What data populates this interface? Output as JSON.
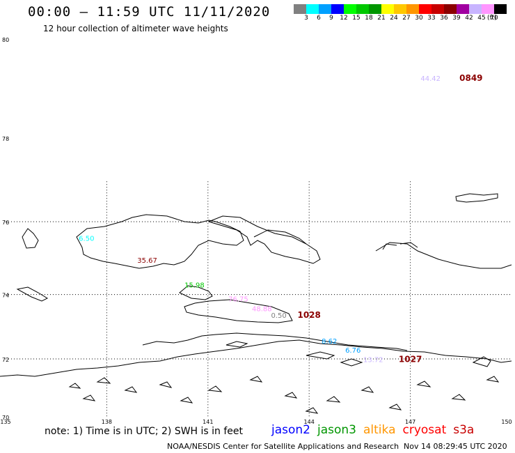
{
  "header": {
    "title": "00:00 – 11:59 UTC 11/11/2020",
    "subtitle": "12 hour collection of altimeter wave heights"
  },
  "legend": {
    "unit": "(ft)",
    "bins": [
      {
        "label": "3",
        "color": "#808080"
      },
      {
        "label": "6",
        "color": "#00ffff"
      },
      {
        "label": "9",
        "color": "#00a0ff"
      },
      {
        "label": "12",
        "color": "#0000ff"
      },
      {
        "label": "15",
        "color": "#00ff00"
      },
      {
        "label": "18",
        "color": "#00c800"
      },
      {
        "label": "21",
        "color": "#009600"
      },
      {
        "label": "24",
        "color": "#ffff00"
      },
      {
        "label": "27",
        "color": "#ffc800"
      },
      {
        "label": "30",
        "color": "#ff9600"
      },
      {
        "label": "33",
        "color": "#ff0000"
      },
      {
        "label": "36",
        "color": "#c80000"
      },
      {
        "label": "39",
        "color": "#8b0000"
      },
      {
        "label": "42",
        "color": "#a000a0"
      },
      {
        "label": "45",
        "color": "#c8b4ff"
      },
      {
        "label": "70",
        "color": "#ff96ff"
      },
      {
        "label": "",
        "color": "#000000"
      }
    ]
  },
  "axes": {
    "lat_labels": [
      "80",
      "78",
      "76",
      "74",
      "72",
      "70"
    ],
    "lon_labels": [
      "135",
      "138",
      "141",
      "144",
      "147",
      "150"
    ]
  },
  "observations": [
    {
      "value": "44.42",
      "color": "#c8b4ff",
      "lat": 79.2,
      "lon": 147.6
    },
    {
      "value": "6.50",
      "color": "#00ffff",
      "lat": 75.5,
      "lon": 137.4
    },
    {
      "value": "35.67",
      "color": "#8b0000",
      "lat": 74.9,
      "lon": 139.2
    },
    {
      "value": "15.98",
      "color": "#00c800",
      "lat": 74.2,
      "lon": 140.6
    },
    {
      "value": "76.75",
      "color": "#ff96ff",
      "lat": 73.8,
      "lon": 141.9
    },
    {
      "value": "48.88",
      "color": "#ff96ff",
      "lat": 73.5,
      "lon": 142.6
    },
    {
      "value": "0.50",
      "color": "#808080",
      "lat": 73.3,
      "lon": 143.1
    },
    {
      "value": "8.62",
      "color": "#00a0ff",
      "lat": 72.5,
      "lon": 144.6
    },
    {
      "value": "6.76",
      "color": "#00a0ff",
      "lat": 72.2,
      "lon": 145.3
    },
    {
      "value": "13.72",
      "color": "#c8b4ff",
      "lat": 71.9,
      "lon": 145.9
    }
  ],
  "pass_times": [
    {
      "value": "0849",
      "color": "#8b0000",
      "lat": 79.2,
      "lon": 148.8
    },
    {
      "value": "1028",
      "color": "#8b0000",
      "lat": 73.3,
      "lon": 144.0
    },
    {
      "value": "1027",
      "color": "#8b0000",
      "lat": 71.9,
      "lon": 147.0
    }
  ],
  "footer": {
    "note": "note:  1) Time is in UTC; 2) SWH is in feet",
    "satellites": [
      {
        "name": "jason2",
        "color": "#0000ff"
      },
      {
        "name": "jason3",
        "color": "#009600"
      },
      {
        "name": "altika",
        "color": "#ff9600"
      },
      {
        "name": "cryosat",
        "color": "#ff0000"
      },
      {
        "name": "s3a",
        "color": "#c80000"
      }
    ],
    "credit": "NOAA/NESDIS Center for Satellite Applications and Research",
    "timestamp": "Nov 14 08:29:45 UTC 2020"
  }
}
